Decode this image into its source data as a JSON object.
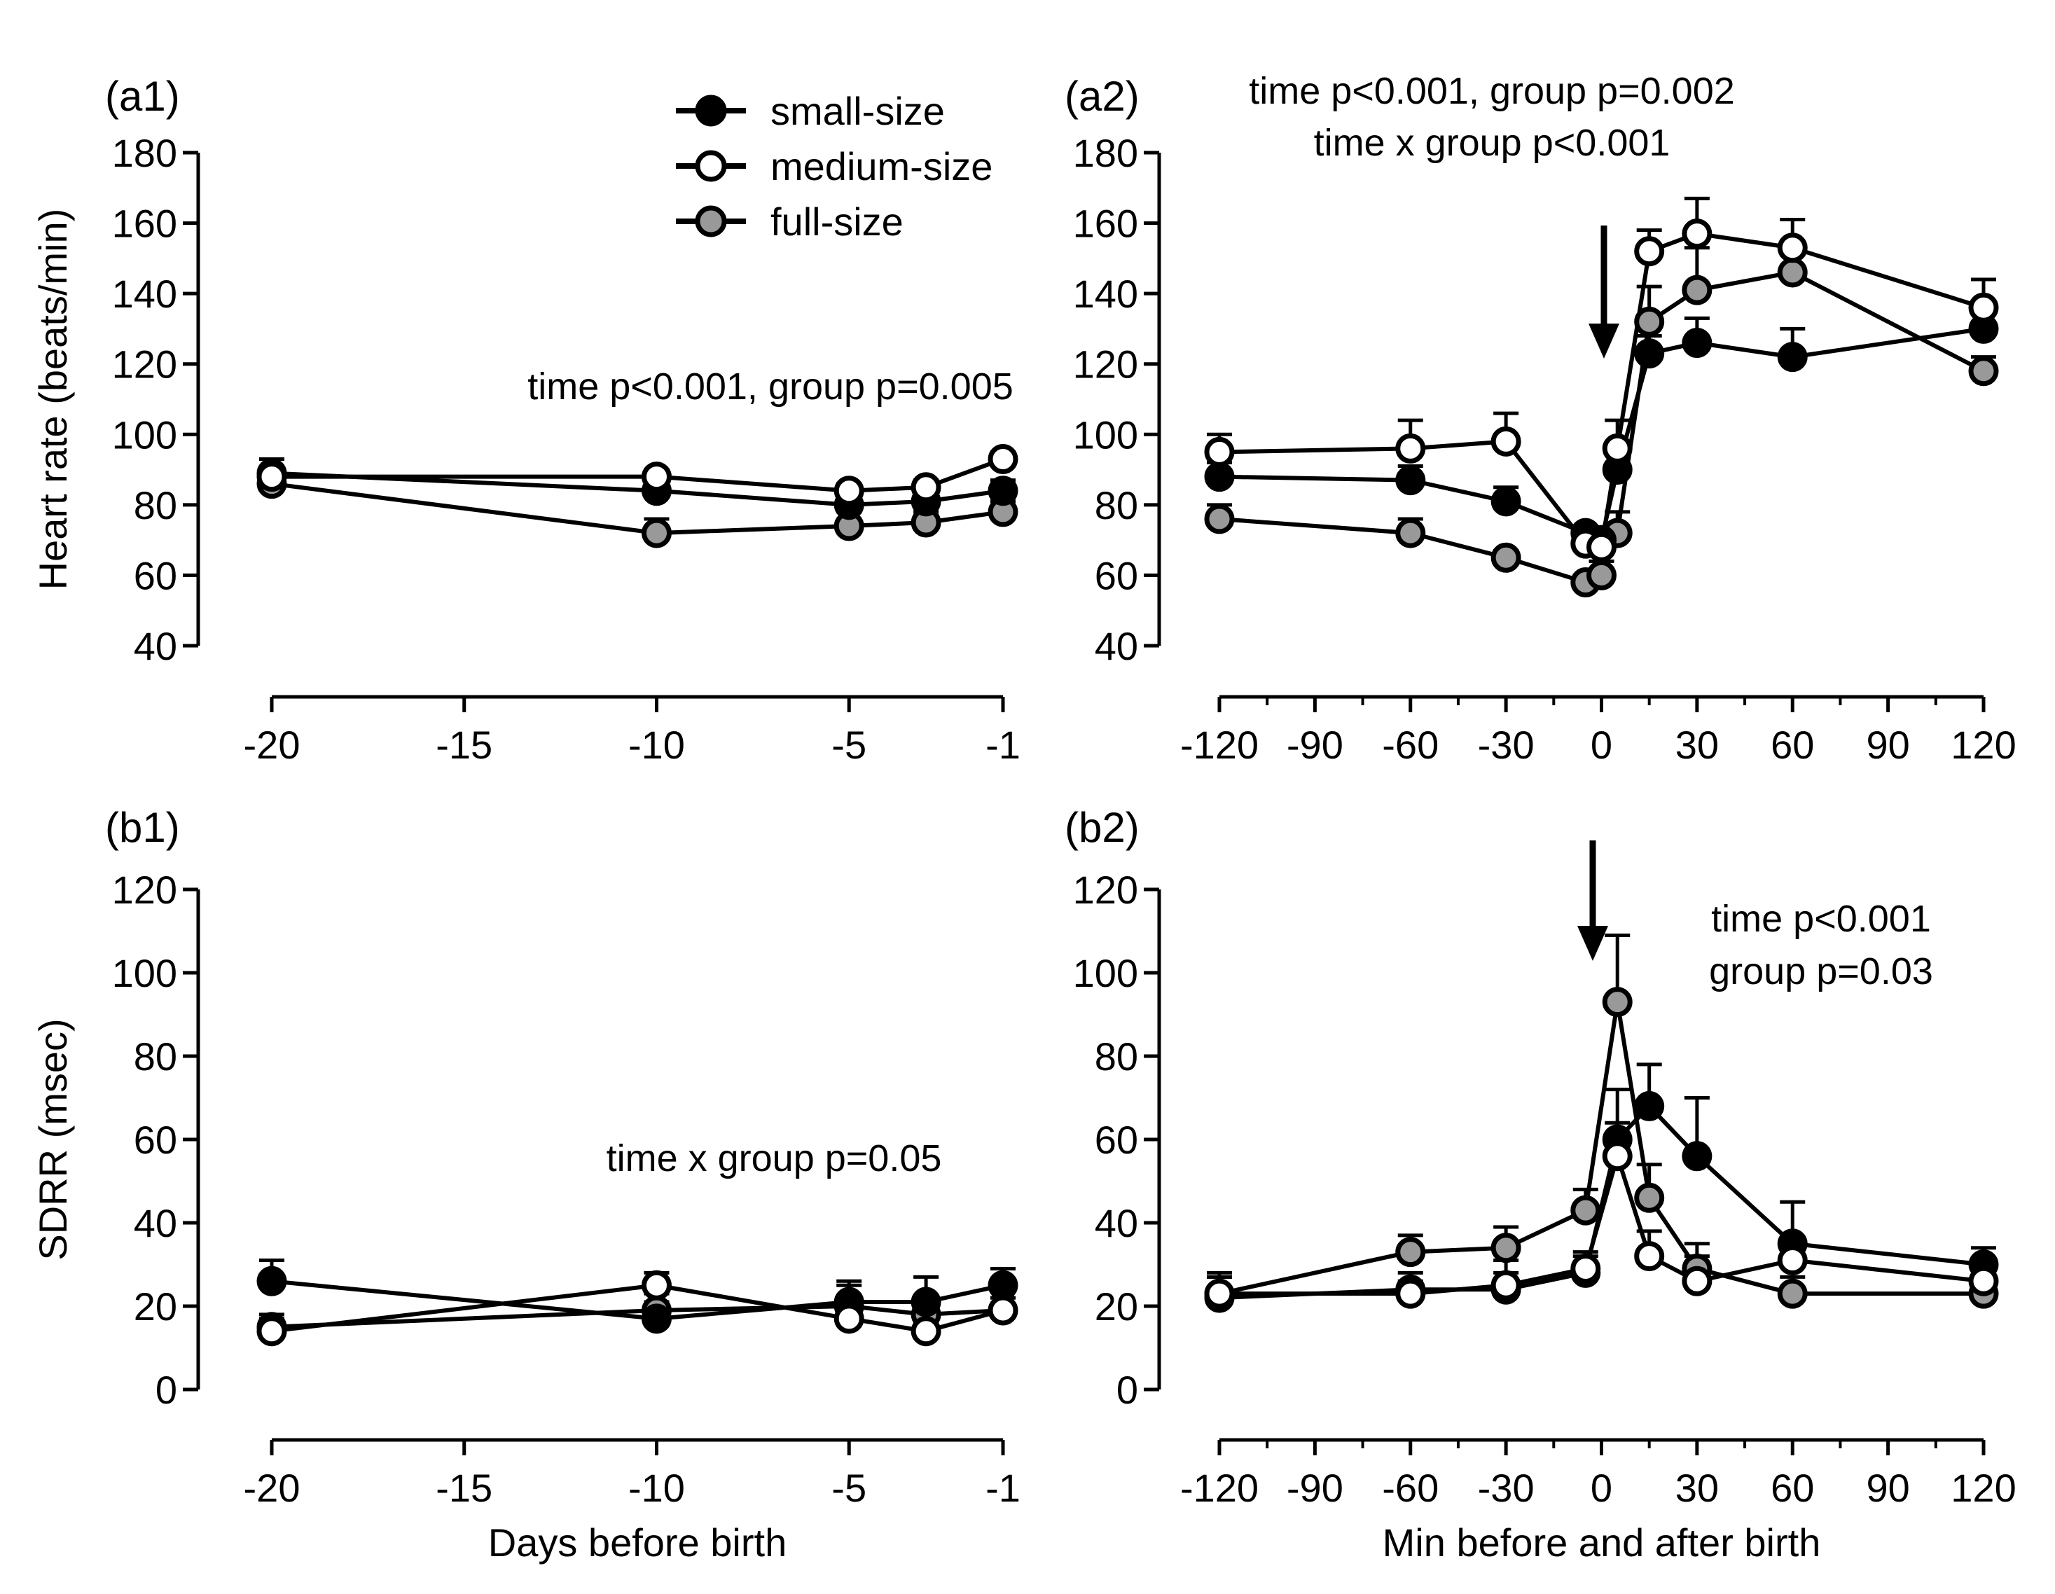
{
  "figure": {
    "legend": [
      {
        "label": "small-size",
        "key": "small"
      },
      {
        "label": "medium-size",
        "key": "medium"
      },
      {
        "label": "full-size",
        "key": "full"
      }
    ],
    "colors": {
      "small": "#000000",
      "medium": "#ffffff",
      "full": "#999999",
      "axis": "#000000"
    }
  },
  "chart_data": [
    {
      "id": "a1",
      "panel_label": "(a1)",
      "type": "line",
      "title": "",
      "xlabel": "",
      "ylabel": "Heart rate (beats/min)",
      "xlim": [
        -20,
        -1
      ],
      "ylim": [
        40,
        180
      ],
      "xticks": [
        -20,
        -15,
        -10,
        -5,
        -1
      ],
      "yticks": [
        40,
        60,
        80,
        100,
        120,
        140,
        160,
        180
      ],
      "xtick_labels": [
        "-20",
        "-15",
        "-10",
        "-5",
        "-1"
      ],
      "ytick_labels": [
        "40",
        "60",
        "80",
        "100",
        "120",
        "140",
        "160",
        "180"
      ],
      "x": [
        -20,
        -10,
        -5,
        -3,
        -1
      ],
      "annotations": [
        "time p<0.001, group p=0.005"
      ],
      "series": [
        {
          "name": "small-size",
          "key": "small",
          "values": [
            89,
            84,
            80,
            81,
            84
          ],
          "errors": [
            4,
            2,
            2,
            2,
            3
          ]
        },
        {
          "name": "medium-size",
          "key": "medium",
          "values": [
            88,
            88,
            84,
            85,
            93
          ],
          "errors": [
            2,
            2,
            2,
            2,
            2
          ]
        },
        {
          "name": "full-size",
          "key": "full",
          "values": [
            86,
            72,
            74,
            75,
            78
          ],
          "errors": [
            2,
            4,
            4,
            3,
            3
          ]
        }
      ]
    },
    {
      "id": "a2",
      "panel_label": "(a2)",
      "type": "line",
      "title": "",
      "xlabel": "",
      "ylabel": "",
      "xlim": [
        -120,
        120
      ],
      "ylim": [
        40,
        180
      ],
      "xticks": [
        -120,
        -90,
        -60,
        -30,
        0,
        30,
        60,
        90,
        120
      ],
      "yticks": [
        40,
        60,
        80,
        100,
        120,
        140,
        160,
        180
      ],
      "xtick_labels": [
        "-120",
        "-90",
        "-60",
        "-30",
        "0",
        "30",
        "60",
        "90",
        "120"
      ],
      "ytick_labels": [
        "40",
        "60",
        "80",
        "100",
        "120",
        "140",
        "160",
        "180"
      ],
      "x": [
        -120,
        -60,
        -30,
        -5,
        0,
        5,
        15,
        30,
        60,
        120
      ],
      "annotations": [
        "time p<0.001, group p=0.002",
        "time x group p<0.001"
      ],
      "series": [
        {
          "name": "small-size",
          "key": "small",
          "values": [
            88,
            87,
            81,
            72,
            70,
            90,
            123,
            126,
            122,
            130
          ],
          "errors": [
            4,
            4,
            4,
            2,
            3,
            5,
            5,
            7,
            8,
            6
          ]
        },
        {
          "name": "medium-size",
          "key": "medium",
          "values": [
            95,
            96,
            98,
            69,
            68,
            96,
            152,
            157,
            153,
            136
          ],
          "errors": [
            5,
            8,
            8,
            3,
            4,
            8,
            6,
            10,
            8,
            8
          ]
        },
        {
          "name": "full-size",
          "key": "full",
          "values": [
            76,
            72,
            65,
            58,
            60,
            72,
            132,
            141,
            146,
            118
          ],
          "errors": [
            4,
            4,
            2,
            2,
            4,
            6,
            10,
            12,
            5,
            4
          ]
        }
      ]
    },
    {
      "id": "b1",
      "panel_label": "(b1)",
      "type": "line",
      "title": "",
      "xlabel": "Days before birth",
      "ylabel": "SDRR (msec)",
      "xlim": [
        -20,
        -1
      ],
      "ylim": [
        0,
        120
      ],
      "xticks": [
        -20,
        -15,
        -10,
        -5,
        -1
      ],
      "yticks": [
        0,
        20,
        40,
        60,
        80,
        100,
        120
      ],
      "xtick_labels": [
        "-20",
        "-15",
        "-10",
        "-5",
        "-1"
      ],
      "ytick_labels": [
        "0",
        "20",
        "40",
        "60",
        "80",
        "100",
        "120"
      ],
      "x": [
        -20,
        -10,
        -5,
        -3,
        -1
      ],
      "annotations": [
        "time x group p=0.05"
      ],
      "series": [
        {
          "name": "small-size",
          "key": "small",
          "values": [
            26,
            17,
            21,
            21,
            25
          ],
          "errors": [
            5,
            4,
            5,
            6,
            4
          ]
        },
        {
          "name": "medium-size",
          "key": "medium",
          "values": [
            14,
            25,
            17,
            14,
            19
          ],
          "errors": [
            3,
            3,
            3,
            2,
            3
          ]
        },
        {
          "name": "full-size",
          "key": "full",
          "values": [
            15,
            19,
            20,
            18,
            19
          ],
          "errors": [
            3,
            4,
            5,
            4,
            3
          ]
        }
      ]
    },
    {
      "id": "b2",
      "panel_label": "(b2)",
      "type": "line",
      "title": "",
      "xlabel": "Min before and after birth",
      "ylabel": "",
      "xlim": [
        -120,
        120
      ],
      "ylim": [
        0,
        120
      ],
      "xticks": [
        -120,
        -90,
        -60,
        -30,
        0,
        30,
        60,
        90,
        120
      ],
      "yticks": [
        0,
        20,
        40,
        60,
        80,
        100,
        120
      ],
      "xtick_labels": [
        "-120",
        "-90",
        "-60",
        "-30",
        "0",
        "30",
        "60",
        "90",
        "120"
      ],
      "ytick_labels": [
        "0",
        "20",
        "40",
        "60",
        "80",
        "100",
        "120"
      ],
      "x": [
        -120,
        -60,
        -30,
        -5,
        5,
        15,
        30,
        60,
        120
      ],
      "annotations": [
        "time p<0.001",
        "group p=0.03"
      ],
      "series": [
        {
          "name": "small-size",
          "key": "small",
          "values": [
            22,
            24,
            24,
            28,
            60,
            68,
            56,
            35,
            30
          ],
          "errors": [
            6,
            4,
            7,
            5,
            12,
            10,
            14,
            10,
            4
          ]
        },
        {
          "name": "medium-size",
          "key": "medium",
          "values": [
            23,
            23,
            25,
            29,
            56,
            32,
            26,
            31,
            26
          ],
          "errors": [
            4,
            3,
            3,
            3,
            8,
            6,
            6,
            5,
            4
          ]
        },
        {
          "name": "full-size",
          "key": "full",
          "values": [
            23,
            33,
            34,
            43,
            93,
            46,
            29,
            23,
            23
          ],
          "errors": [
            4,
            4,
            5,
            5,
            16,
            8,
            6,
            4,
            3
          ]
        }
      ]
    }
  ]
}
